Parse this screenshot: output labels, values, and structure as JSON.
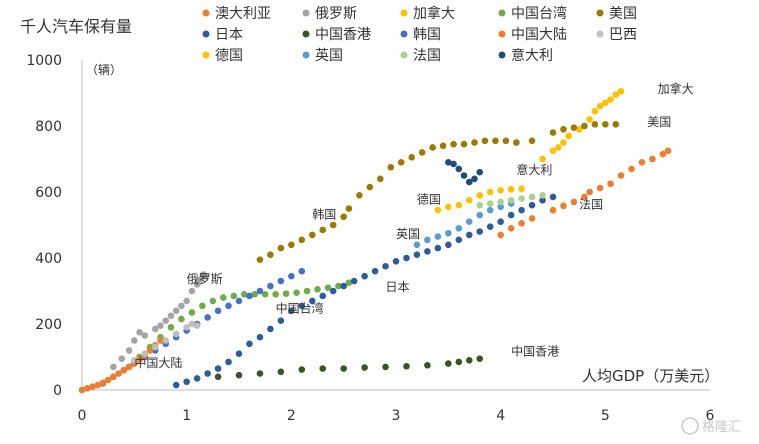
{
  "chart_data": {
    "type": "scatter",
    "ylabel": "千人汽车保有量",
    "yunit": "（辆）",
    "xlabel": "人均GDP（万美元）",
    "xlim": [
      0,
      6
    ],
    "ylim": [
      0,
      1000
    ],
    "xticks": [
      "0",
      "1",
      "2",
      "3",
      "4",
      "5",
      "6"
    ],
    "yticks": [
      "0",
      "200",
      "400",
      "600",
      "800",
      "1000"
    ],
    "grid": false,
    "legend_position": "top",
    "watermark": "格隆汇",
    "series": [
      {
        "name": "澳大利亚",
        "color": "#ED7D31",
        "end_label": "",
        "points": [
          [
            4.0,
            470
          ],
          [
            4.1,
            490
          ],
          [
            4.2,
            505
          ],
          [
            4.3,
            520
          ],
          [
            4.5,
            545
          ],
          [
            4.6,
            558
          ],
          [
            4.7,
            570
          ],
          [
            4.8,
            585
          ],
          [
            4.85,
            600
          ],
          [
            4.95,
            612
          ],
          [
            5.05,
            625
          ],
          [
            5.15,
            650
          ],
          [
            5.25,
            670
          ],
          [
            5.35,
            690
          ],
          [
            5.45,
            700
          ],
          [
            5.55,
            715
          ],
          [
            5.6,
            725
          ]
        ]
      },
      {
        "name": "俄罗斯",
        "color": "#A5A5A5",
        "end_label": "俄罗斯",
        "points": [
          [
            0.3,
            70
          ],
          [
            0.38,
            95
          ],
          [
            0.45,
            120
          ],
          [
            0.5,
            150
          ],
          [
            0.55,
            175
          ],
          [
            0.6,
            165
          ],
          [
            0.7,
            185
          ],
          [
            0.75,
            195
          ],
          [
            0.8,
            210
          ],
          [
            0.85,
            225
          ],
          [
            0.9,
            240
          ],
          [
            0.95,
            255
          ],
          [
            1.0,
            270
          ],
          [
            1.05,
            300
          ],
          [
            1.1,
            320
          ],
          [
            1.13,
            335
          ],
          [
            1.16,
            350
          ],
          [
            1.18,
            345
          ]
        ]
      },
      {
        "name": "加拿大",
        "color": "#FFC000",
        "end_label": "加拿大",
        "points": [
          [
            4.4,
            700
          ],
          [
            4.5,
            725
          ],
          [
            4.55,
            735
          ],
          [
            4.6,
            750
          ],
          [
            4.65,
            770
          ],
          [
            4.75,
            790
          ],
          [
            4.8,
            800
          ],
          [
            4.85,
            820
          ],
          [
            4.9,
            845
          ],
          [
            4.95,
            860
          ],
          [
            5.0,
            870
          ],
          [
            5.05,
            880
          ],
          [
            5.1,
            895
          ],
          [
            5.15,
            905
          ]
        ]
      },
      {
        "name": "中国台湾",
        "color": "#70AD47",
        "end_label": "中国台湾",
        "points": [
          [
            0.45,
            70
          ],
          [
            0.55,
            100
          ],
          [
            0.65,
            130
          ],
          [
            0.75,
            160
          ],
          [
            0.85,
            190
          ],
          [
            0.95,
            215
          ],
          [
            1.05,
            235
          ],
          [
            1.15,
            255
          ],
          [
            1.25,
            270
          ],
          [
            1.35,
            280
          ],
          [
            1.45,
            285
          ],
          [
            1.55,
            290
          ],
          [
            1.65,
            290
          ],
          [
            1.75,
            290
          ],
          [
            1.85,
            290
          ],
          [
            1.95,
            292
          ],
          [
            2.05,
            295
          ],
          [
            2.15,
            300
          ],
          [
            2.25,
            305
          ],
          [
            2.35,
            310
          ],
          [
            2.45,
            315
          ],
          [
            2.55,
            325
          ]
        ]
      },
      {
        "name": "美国",
        "color": "#9C7A00",
        "end_label": "美国",
        "points": [
          [
            1.7,
            395
          ],
          [
            1.8,
            410
          ],
          [
            1.9,
            430
          ],
          [
            2.0,
            440
          ],
          [
            2.1,
            455
          ],
          [
            2.2,
            470
          ],
          [
            2.3,
            485
          ],
          [
            2.4,
            500
          ],
          [
            2.5,
            525
          ],
          [
            2.55,
            550
          ],
          [
            2.65,
            590
          ],
          [
            2.75,
            615
          ],
          [
            2.85,
            640
          ],
          [
            2.95,
            675
          ],
          [
            3.05,
            690
          ],
          [
            3.15,
            705
          ],
          [
            3.25,
            720
          ],
          [
            3.35,
            735
          ],
          [
            3.45,
            740
          ],
          [
            3.55,
            745
          ],
          [
            3.65,
            745
          ],
          [
            3.75,
            750
          ],
          [
            3.85,
            755
          ],
          [
            3.95,
            755
          ],
          [
            4.05,
            755
          ],
          [
            4.15,
            750
          ],
          [
            4.3,
            755
          ],
          [
            4.5,
            780
          ],
          [
            4.6,
            790
          ],
          [
            4.7,
            795
          ],
          [
            4.8,
            800
          ],
          [
            4.9,
            805
          ],
          [
            5.0,
            805
          ],
          [
            5.1,
            805
          ]
        ]
      },
      {
        "name": "日本",
        "color": "#2E5C9A",
        "end_label": "日本",
        "points": [
          [
            0.9,
            15
          ],
          [
            1.0,
            25
          ],
          [
            1.1,
            35
          ],
          [
            1.2,
            50
          ],
          [
            1.3,
            65
          ],
          [
            1.4,
            85
          ],
          [
            1.5,
            110
          ],
          [
            1.6,
            140
          ],
          [
            1.7,
            160
          ],
          [
            1.8,
            185
          ],
          [
            1.9,
            210
          ],
          [
            2.0,
            240
          ],
          [
            2.1,
            255
          ],
          [
            2.2,
            270
          ],
          [
            2.3,
            285
          ],
          [
            2.4,
            300
          ],
          [
            2.5,
            315
          ],
          [
            2.6,
            330
          ],
          [
            2.7,
            345
          ],
          [
            2.8,
            360
          ],
          [
            2.9,
            375
          ],
          [
            3.0,
            390
          ],
          [
            3.1,
            400
          ],
          [
            3.2,
            410
          ],
          [
            3.3,
            420
          ],
          [
            3.4,
            430
          ],
          [
            3.5,
            440
          ],
          [
            3.6,
            455
          ],
          [
            3.7,
            470
          ],
          [
            3.8,
            480
          ],
          [
            3.9,
            495
          ],
          [
            4.0,
            510
          ],
          [
            4.1,
            530
          ],
          [
            4.2,
            545
          ],
          [
            4.3,
            560
          ],
          [
            4.4,
            575
          ],
          [
            4.5,
            585
          ]
        ]
      },
      {
        "name": "中国香港",
        "color": "#375623",
        "end_label": "中国香港",
        "points": [
          [
            1.3,
            40
          ],
          [
            1.5,
            45
          ],
          [
            1.7,
            50
          ],
          [
            1.9,
            55
          ],
          [
            2.1,
            62
          ],
          [
            2.3,
            65
          ],
          [
            2.5,
            65
          ],
          [
            2.7,
            68
          ],
          [
            2.9,
            70
          ],
          [
            3.1,
            72
          ],
          [
            3.3,
            75
          ],
          [
            3.5,
            80
          ],
          [
            3.6,
            85
          ],
          [
            3.7,
            90
          ],
          [
            3.8,
            95
          ]
        ]
      },
      {
        "name": "韩国",
        "color": "#4472C4",
        "end_label": "韩国",
        "points": [
          [
            0.2,
            20
          ],
          [
            0.3,
            40
          ],
          [
            0.4,
            60
          ],
          [
            0.5,
            80
          ],
          [
            0.6,
            100
          ],
          [
            0.7,
            120
          ],
          [
            0.8,
            140
          ],
          [
            0.9,
            160
          ],
          [
            1.0,
            180
          ],
          [
            1.1,
            200
          ],
          [
            1.2,
            220
          ],
          [
            1.3,
            240
          ],
          [
            1.4,
            255
          ],
          [
            1.5,
            270
          ],
          [
            1.6,
            285
          ],
          [
            1.7,
            300
          ],
          [
            1.8,
            315
          ],
          [
            1.9,
            330
          ],
          [
            2.0,
            345
          ],
          [
            2.1,
            360
          ]
        ]
      },
      {
        "name": "中国大陆",
        "color": "#ED7D31",
        "end_label": "中国大陆",
        "points": [
          [
            0.0,
            0
          ],
          [
            0.05,
            5
          ],
          [
            0.1,
            10
          ],
          [
            0.15,
            15
          ],
          [
            0.2,
            22
          ],
          [
            0.25,
            30
          ],
          [
            0.3,
            40
          ],
          [
            0.35,
            50
          ],
          [
            0.4,
            60
          ],
          [
            0.45,
            70
          ],
          [
            0.5,
            80
          ],
          [
            0.55,
            92
          ],
          [
            0.6,
            105
          ],
          [
            0.65,
            120
          ],
          [
            0.7,
            135
          ],
          [
            0.75,
            150
          ]
        ]
      },
      {
        "name": "巴西",
        "color": "#BFBFBF",
        "end_label": "",
        "points": [
          [
            0.5,
            90
          ],
          [
            0.6,
            110
          ],
          [
            0.7,
            130
          ],
          [
            0.8,
            150
          ],
          [
            0.9,
            170
          ],
          [
            1.0,
            190
          ],
          [
            1.05,
            200
          ],
          [
            1.1,
            195
          ]
        ]
      },
      {
        "name": "德国",
        "color": "#FFC000",
        "end_label": "德国",
        "points": [
          [
            3.4,
            545
          ],
          [
            3.5,
            555
          ],
          [
            3.6,
            560
          ],
          [
            3.7,
            575
          ],
          [
            3.8,
            590
          ],
          [
            3.9,
            600
          ],
          [
            4.0,
            605
          ],
          [
            4.1,
            608
          ],
          [
            4.2,
            610
          ]
        ]
      },
      {
        "name": "英国",
        "color": "#5B9BD5",
        "end_label": "英国",
        "points": [
          [
            3.2,
            440
          ],
          [
            3.3,
            455
          ],
          [
            3.4,
            465
          ],
          [
            3.5,
            475
          ],
          [
            3.6,
            490
          ],
          [
            3.7,
            510
          ],
          [
            3.8,
            530
          ],
          [
            3.9,
            545
          ],
          [
            4.0,
            555
          ],
          [
            4.1,
            565
          ]
        ]
      },
      {
        "name": "法国",
        "color": "#A9D18E",
        "end_label": "法国",
        "points": [
          [
            3.8,
            560
          ],
          [
            3.9,
            565
          ],
          [
            4.0,
            570
          ],
          [
            4.1,
            575
          ],
          [
            4.2,
            580
          ],
          [
            4.3,
            585
          ],
          [
            4.4,
            590
          ]
        ]
      },
      {
        "name": "意大利",
        "color": "#1F4E79",
        "end_label": "意大利",
        "points": [
          [
            3.5,
            690
          ],
          [
            3.55,
            685
          ],
          [
            3.6,
            670
          ],
          [
            3.65,
            650
          ],
          [
            3.7,
            630
          ],
          [
            3.75,
            640
          ],
          [
            3.8,
            660
          ]
        ]
      }
    ],
    "end_label_positions": {
      "俄罗斯": [
        1.0,
        325
      ],
      "加拿大": [
        5.5,
        900
      ],
      "中国台湾": [
        1.85,
        235
      ],
      "美国": [
        5.4,
        800
      ],
      "日本": [
        2.9,
        300
      ],
      "中国香港": [
        4.1,
        105
      ],
      "韩国": [
        2.2,
        520
      ],
      "中国大陆": [
        0.5,
        70
      ],
      "德国": [
        3.2,
        565
      ],
      "英国": [
        3.0,
        460
      ],
      "法国": [
        4.75,
        550
      ],
      "意大利": [
        4.15,
        655
      ]
    }
  }
}
